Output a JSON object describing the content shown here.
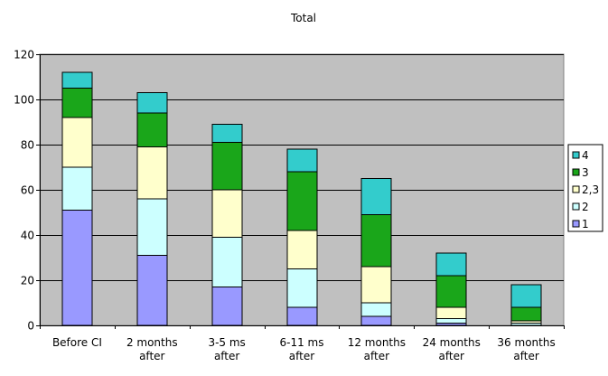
{
  "chart_data": {
    "type": "bar",
    "stacked": true,
    "title": "Total",
    "xlabel": "",
    "ylabel": "",
    "ylim": [
      0,
      120
    ],
    "yticks": [
      0,
      20,
      40,
      60,
      80,
      100,
      120
    ],
    "grid": true,
    "legend_position": "right",
    "categories": [
      [
        "Before CI"
      ],
      [
        "2 months",
        "after"
      ],
      [
        "3-5 ms",
        "after"
      ],
      [
        "6-11 ms",
        "after"
      ],
      [
        "12 months",
        "after"
      ],
      [
        "24 months",
        "after"
      ],
      [
        "36 months",
        "after"
      ]
    ],
    "series": [
      {
        "name": "1",
        "color": "#9999ff",
        "values": [
          51,
          31,
          17,
          8,
          4,
          1,
          0
        ]
      },
      {
        "name": "2",
        "color": "#ccffff",
        "values": [
          19,
          25,
          22,
          17,
          6,
          2,
          1
        ]
      },
      {
        "name": "2,3",
        "color": "#ffffcc",
        "values": [
          22,
          23,
          21,
          17,
          16,
          5,
          1
        ]
      },
      {
        "name": "3",
        "color": "#1aa61a",
        "values": [
          13,
          15,
          21,
          26,
          23,
          14,
          6
        ]
      },
      {
        "name": "4",
        "color": "#33cccc",
        "values": [
          7,
          9,
          8,
          10,
          16,
          10,
          10
        ]
      }
    ],
    "plot_background": "#c0c0c0"
  }
}
